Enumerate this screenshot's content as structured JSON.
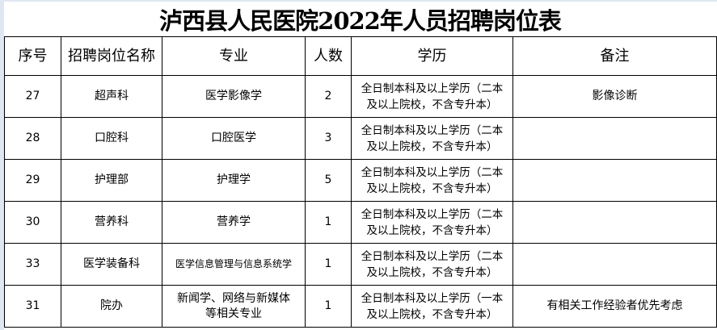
{
  "title": "泸西县人民医院2022年人员招聘岗位表",
  "headers": [
    "序号",
    "招聘岗位名称",
    "专业",
    "人数",
    "学历",
    "备注"
  ],
  "rows": [
    {
      "no": "27",
      "position": "超声科",
      "major": "医学影像学",
      "count": "2",
      "edu1": "全日制本科及以上学历（二本",
      "edu2": "及以上院校，不含专升本）",
      "note": "影像诊断"
    },
    {
      "no": "28",
      "position": "口腔科",
      "major": "口腔医学",
      "count": "3",
      "edu1": "全日制本科及以上学历（二本",
      "edu2": "及以上院校，不含专升本）",
      "note": ""
    },
    {
      "no": "29",
      "position": "护理部",
      "major": "护理学",
      "count": "5",
      "edu1": "全日制本科及以上学历（二本",
      "edu2": "及以上院校，不含专升本）",
      "note": ""
    },
    {
      "no": "30",
      "position": "营养科",
      "major": "营养学",
      "count": "1",
      "edu1": "全日制本科及以上学历（二本",
      "edu2": "及以上院校，不含专升本）",
      "note": ""
    },
    {
      "no": "33",
      "position": "医学装备科",
      "major": "医学信息管理与信息系统学",
      "count": "1",
      "edu1": "全日制本科及以上学历（二本",
      "edu2": "及以上院校，不含专升本）",
      "note": ""
    },
    {
      "no": "31",
      "position": "院办",
      "major": "新闻学、网络与新媒体等相关专业",
      "count": "1",
      "edu1": "全日制本科及以上学历（一本",
      "edu2": "及以上院校，不含专升本）",
      "note": "有相关工作经验者优先考虑"
    }
  ]
}
